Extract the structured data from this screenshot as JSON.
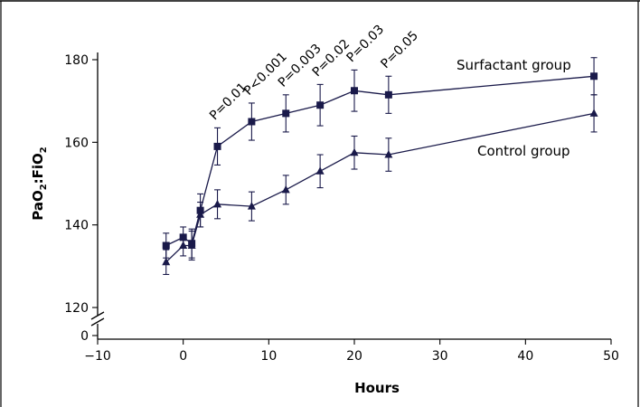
{
  "chart_data": {
    "type": "line",
    "title": "",
    "xlabel": "Hours",
    "ylabel": "PaO2:FiO2",
    "ylabel_main": "PaO",
    "ylabel_sub1": "2",
    "ylabel_mid": ":FiO",
    "ylabel_sub2": "2",
    "xlim": [
      -10,
      50
    ],
    "ylim": [
      120,
      183
    ],
    "x_ticks": [
      -10,
      0,
      10,
      20,
      30,
      40,
      50
    ],
    "y_ticks": [
      0,
      120,
      140,
      160,
      180
    ],
    "axis_break": true,
    "grid": false,
    "series": [
      {
        "name": "Surfactant group",
        "marker": "square",
        "color": "#1a1a4a",
        "x": [
          -2,
          0,
          1,
          2,
          4,
          8,
          12,
          16,
          20,
          24,
          48
        ],
        "y": [
          135,
          137,
          135.5,
          143.5,
          159,
          165,
          167,
          169,
          172.5,
          171.5,
          176
        ],
        "err": [
          3,
          2.5,
          3.5,
          4,
          4.5,
          4.5,
          4.5,
          5,
          5,
          4.5,
          4.5
        ]
      },
      {
        "name": "Control group",
        "marker": "triangle",
        "color": "#1a1a4a",
        "x": [
          -2,
          0,
          1,
          2,
          4,
          8,
          12,
          16,
          20,
          24,
          48
        ],
        "y": [
          131,
          135,
          135,
          142.5,
          145,
          144.5,
          148.5,
          153,
          157.5,
          157,
          167
        ],
        "err": [
          3,
          2.5,
          3.5,
          3,
          3.5,
          3.5,
          3.5,
          4,
          4,
          4,
          4.5
        ]
      }
    ],
    "annotations": [
      {
        "text": "P=0.01",
        "x": 4
      },
      {
        "text": "P<0.001",
        "x": 8
      },
      {
        "text": "P=0.003",
        "x": 12
      },
      {
        "text": "P=0.02",
        "x": 16
      },
      {
        "text": "P=0.03",
        "x": 20
      },
      {
        "text": "P=0.05",
        "x": 24
      }
    ]
  }
}
